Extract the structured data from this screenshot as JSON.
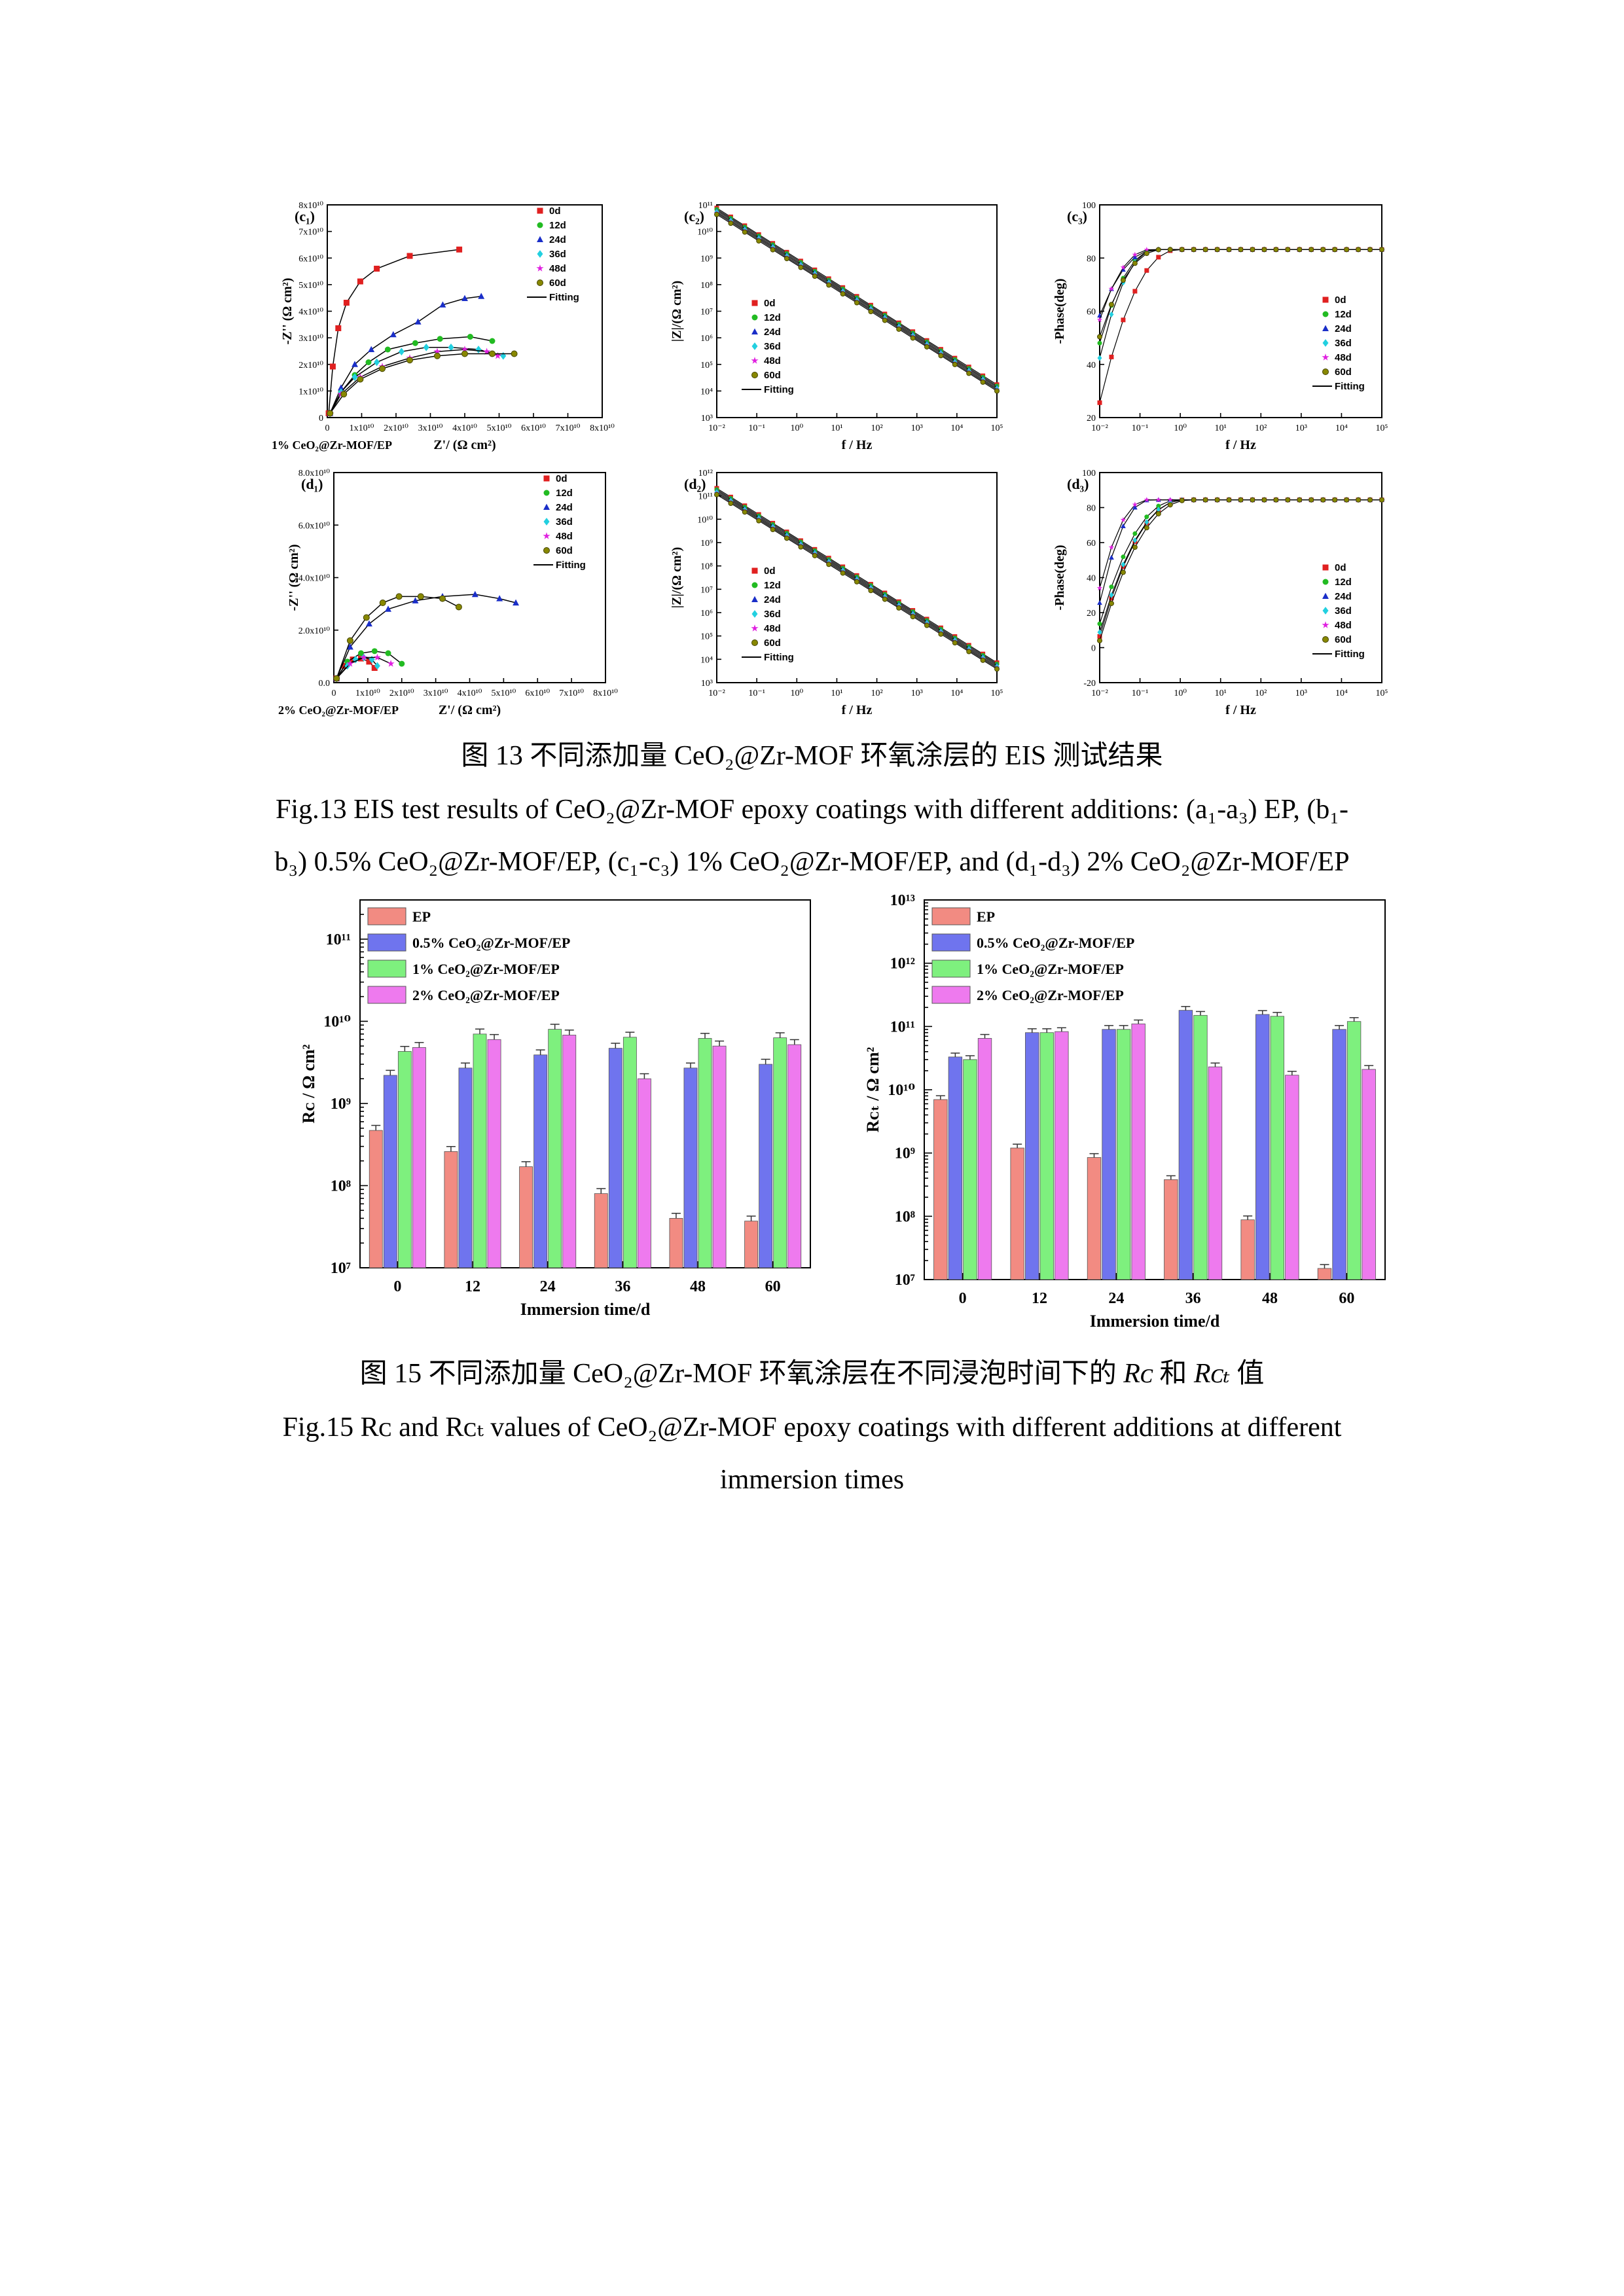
{
  "eis_figure": {
    "panels": [
      {
        "id": "c1",
        "label": "(c₁)",
        "xlabel": "Z'/ (Ω cm²)",
        "ylabel": "-Z'' (Ω cm²)",
        "sample": "1% CeO₂@Zr-MOF/EP",
        "xticks": [
          "0",
          "1x10¹⁰",
          "2x10¹⁰",
          "3x10¹⁰",
          "4x10¹⁰",
          "5x10¹⁰",
          "6x10¹⁰",
          "7x10¹⁰",
          "8x10¹⁰"
        ],
        "yticks": [
          "0",
          "1x10¹⁰",
          "2x10¹⁰",
          "3x10¹⁰",
          "4x10¹⁰",
          "5x10¹⁰",
          "6x10¹⁰",
          "7x10¹⁰",
          "8x10¹⁰"
        ]
      },
      {
        "id": "c2",
        "label": "(c₂)",
        "xlabel": "f / Hz",
        "ylabel": "|Z|/(Ω cm²)",
        "xticks": [
          "10⁻²",
          "10⁻¹",
          "10⁰",
          "10¹",
          "10²",
          "10³",
          "10⁴",
          "10⁵"
        ],
        "yticks": [
          "10³",
          "10⁴",
          "10⁵",
          "10⁶",
          "10⁷",
          "10⁸",
          "10⁹",
          "10¹⁰",
          "10¹¹"
        ]
      },
      {
        "id": "c3",
        "label": "(c₃)",
        "xlabel": "f / Hz",
        "ylabel": "-Phase(deg)",
        "xticks": [
          "10⁻²",
          "10⁻¹",
          "10⁰",
          "10¹",
          "10²",
          "10³",
          "10⁴",
          "10⁵"
        ],
        "yticks": [
          "20",
          "40",
          "60",
          "80",
          "100"
        ]
      },
      {
        "id": "d1",
        "label": "(d₁)",
        "xlabel": "Z'/ (Ω cm²)",
        "ylabel": "-Z'' (Ω cm²)",
        "sample": "2% CeO₂@Zr-MOF/EP",
        "xticks": [
          "0",
          "1x10¹⁰",
          "2x10¹⁰",
          "3x10¹⁰",
          "4x10¹⁰",
          "5x10¹⁰",
          "6x10¹⁰",
          "7x10¹⁰",
          "8x10¹⁰"
        ],
        "yticks": [
          "0.0",
          "2.0x10¹⁰",
          "4.0x10¹⁰",
          "6.0x10¹⁰",
          "8.0x10¹⁰"
        ]
      },
      {
        "id": "d2",
        "label": "(d₂)",
        "xlabel": "f / Hz",
        "ylabel": "|Z|/(Ω cm²)",
        "xticks": [
          "10⁻²",
          "10⁻¹",
          "10⁰",
          "10¹",
          "10²",
          "10³",
          "10⁴",
          "10⁵"
        ],
        "yticks": [
          "10³",
          "10⁴",
          "10⁵",
          "10⁶",
          "10⁷",
          "10⁸",
          "10⁹",
          "10¹⁰",
          "10¹¹",
          "10¹²"
        ]
      },
      {
        "id": "d3",
        "label": "(d₃)",
        "xlabel": "f / Hz",
        "ylabel": "-Phase(deg)",
        "xticks": [
          "10⁻²",
          "10⁻¹",
          "10⁰",
          "10¹",
          "10²",
          "10³",
          "10⁴",
          "10⁵"
        ],
        "yticks": [
          "-20",
          "0",
          "20",
          "40",
          "60",
          "80",
          "100"
        ]
      }
    ],
    "legend": [
      "0d",
      "12d",
      "24d",
      "36d",
      "48d",
      "60d",
      "Fitting"
    ],
    "legend_colors": [
      "#e02020",
      "#22bb22",
      "#1a2ec8",
      "#22d0e0",
      "#e020e0",
      "#888800",
      "#000000"
    ],
    "caption_cn": "图 13 不同添加量 CeO₂@Zr-MOF 环氧涂层的 EIS 测试结果",
    "caption_en_line1": "Fig.13 EIS test results of CeO₂@Zr-MOF epoxy coatings with different additions: (a₁-a₃) EP, (b₁-",
    "caption_en_line2": "b₃) 0.5% CeO₂@Zr-MOF/EP, (c₁-c₃) 1% CeO₂@Zr-MOF/EP, and (d₁-d₃) 2% CeO₂@Zr-MOF/EP"
  },
  "chart_data": [
    {
      "type": "bar",
      "title": "",
      "log_scale": true,
      "ylabel": "Rᴄ / Ω cm²",
      "xlabel": "Immersion time/d",
      "categories": [
        "0",
        "12",
        "24",
        "36",
        "48",
        "60"
      ],
      "ylim": [
        10000000.0,
        300000000000.0
      ],
      "yticks": [
        "10⁷",
        "10⁸",
        "10⁹",
        "10¹⁰",
        "10¹¹"
      ],
      "legend_position": "top-left",
      "series": [
        {
          "name": "EP",
          "color": "#f28b82",
          "values": [
            470000000.0,
            260000000.0,
            170000000.0,
            80000000.0,
            40000000.0,
            37000000.0
          ]
        },
        {
          "name": "0.5% CeO₂@Zr-MOF/EP",
          "color": "#6f74ee",
          "values": [
            2200000000.0,
            2700000000.0,
            3900000000.0,
            4700000000.0,
            2700000000.0,
            3000000000.0
          ]
        },
        {
          "name": "1% CeO₂@Zr-MOF/EP",
          "color": "#7ef07e",
          "values": [
            4300000000.0,
            7000000000.0,
            8000000000.0,
            6400000000.0,
            6200000000.0,
            6300000000.0
          ]
        },
        {
          "name": "2% CeO₂@Zr-MOF/EP",
          "color": "#ee7aee",
          "values": [
            4800000000.0,
            6000000000.0,
            6800000000.0,
            2000000000.0,
            5000000000.0,
            5200000000.0
          ]
        }
      ]
    },
    {
      "type": "bar",
      "title": "",
      "log_scale": true,
      "ylabel": "Rᴄₜ / Ω cm²",
      "xlabel": "Immersion time/d",
      "categories": [
        "0",
        "12",
        "24",
        "36",
        "48",
        "60"
      ],
      "ylim": [
        10000000.0,
        10000000000000.0
      ],
      "yticks": [
        "10⁷",
        "10⁸",
        "10⁹",
        "10¹⁰",
        "10¹¹",
        "10¹²",
        "10¹³"
      ],
      "legend_position": "top-left",
      "series": [
        {
          "name": "EP",
          "color": "#f28b82",
          "values": [
            7000000000.0,
            1200000000.0,
            850000000.0,
            380000000.0,
            88000000.0,
            15000000.0
          ]
        },
        {
          "name": "0.5% CeO₂@Zr-MOF/EP",
          "color": "#6f74ee",
          "values": [
            33000000000.0,
            80000000000.0,
            90000000000.0,
            180000000000.0,
            155000000000.0,
            90000000000.0
          ]
        },
        {
          "name": "1% CeO₂@Zr-MOF/EP",
          "color": "#7ef07e",
          "values": [
            30000000000.0,
            80000000000.0,
            90000000000.0,
            150000000000.0,
            145000000000.0,
            120000000000.0
          ]
        },
        {
          "name": "2% CeO₂@Zr-MOF/EP",
          "color": "#ee7aee",
          "values": [
            65000000000.0,
            83000000000.0,
            110000000000.0,
            23000000000.0,
            17000000000.0,
            21000000000.0
          ]
        }
      ]
    }
  ],
  "fig15": {
    "caption_cn_a": "图 15 不同添加量 CeO₂@Zr-MOF 环氧涂层在不同浸泡时间下的 ",
    "rc": "Rᴄ",
    "caption_cn_b": " 和 ",
    "rct": "Rᴄₜ",
    "caption_cn_c": " 值",
    "caption_en_line1": "Fig.15 Rᴄ and Rᴄₜ values of CeO₂@Zr-MOF epoxy coatings with different additions at different",
    "caption_en_line2": "immersion times"
  }
}
